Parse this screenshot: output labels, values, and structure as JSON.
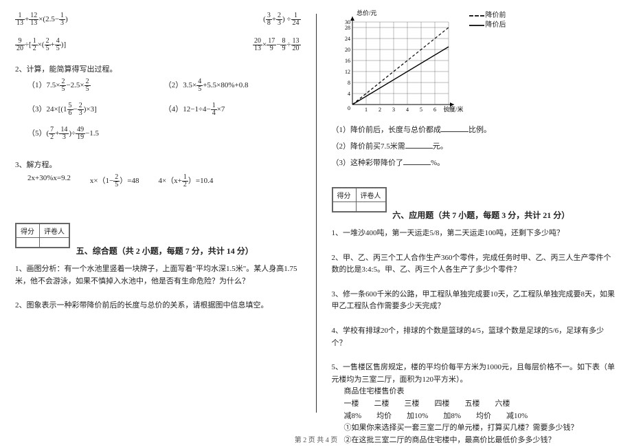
{
  "left": {
    "expr_row1a": {
      "f1n": "1",
      "f1d": "13",
      "f2n": "12",
      "f2d": "13",
      "tail": "×(2.5−",
      "f3n": "1",
      "f3d": "3",
      "close": ")"
    },
    "expr_row1b": {
      "open": "(",
      "f1n": "3",
      "f1d": "8",
      "op": "+",
      "f2n": "2",
      "f2d": "3",
      "close": ") ÷",
      "f3n": "1",
      "f3d": "24"
    },
    "expr_row2a": {
      "f1n": "9",
      "f1d": "20",
      "mid": "÷[",
      "f2n": "1",
      "f2d": "2",
      "op": "×(",
      "f3n": "2",
      "f3d": "5",
      "plus": "+",
      "f4n": "4",
      "f4d": "5",
      "close": ")]"
    },
    "expr_row2b": {
      "f1n": "20",
      "f1d": "13",
      "f2n": "17",
      "f2d": "9",
      "minus": "−",
      "f3n": "8",
      "f3d": "9",
      "div": "÷",
      "f4n": "13",
      "f4d": "20"
    },
    "q2": "2、计算，能简算得写出过程。",
    "q2_1": "（1）7.5×",
    "q2_1f": {
      "n": "2",
      "d": "5"
    },
    "q2_1mid": "−2.5×",
    "q2_2pre": "（2）",
    "q2_2a": "3.5×",
    "q2_2f": {
      "n": "4",
      "d": "5"
    },
    "q2_2b": "+5.5×80%+0.8",
    "q2_3pre": "（3）",
    "q2_3a": "24×[(1",
    "q2_3f1": {
      "n": "5",
      "d": "6"
    },
    "q2_3m": "−",
    "q2_3f2": {
      "n": "2",
      "d": "3"
    },
    "q2_3b": ")×3]",
    "q2_4": "（4）12−1÷4−",
    "q2_4f": {
      "n": "1",
      "d": "4"
    },
    "q2_4b": "×7",
    "q2_5pre": "（5）",
    "q2_5a": "(",
    "q2_5f1": {
      "n": "7",
      "d": "2"
    },
    "q2_5p": "+",
    "q2_5f2": {
      "n": "14",
      "d": "3"
    },
    "q2_5m": ")÷",
    "q2_5f3": {
      "n": "49",
      "d": "19"
    },
    "q2_5b": "−1.5",
    "q3": "3、解方程。",
    "q3a": "2x+30%x=9.2",
    "q3b_pre": "x×（1−",
    "q3b_f": {
      "n": "2",
      "d": "5"
    },
    "q3b_post": "）=48",
    "q3c_pre": "4×（x+",
    "q3c_f": {
      "n": "1",
      "d": "2"
    },
    "q3c_post": "）=10.4",
    "score_lbl_l": "得分",
    "score_lbl_r": "评卷人",
    "sec5": "五、综合题（共 2 小题，每题 7 分，共计 14 分）",
    "sec5_q1": "1、画图分析：有一个水池里竖着一块牌子，上面写着\"平均水深1.5米\"。某人身高1.75米，他不会游泳，如果不慎掉入水池中，他是否有生命危险？为什么？",
    "sec5_q2": "2、图象表示一种彩带降价前后的长度与总价的关系，请根据图中信息填空。"
  },
  "right": {
    "chart": {
      "y_label": "总价/元",
      "x_label": "长度/米",
      "y_ticks": [
        "0",
        "4",
        "8",
        "12",
        "16",
        "20",
        "24",
        "28",
        "30"
      ],
      "x_ticks": [
        "0",
        "1",
        "2",
        "3",
        "4",
        "5",
        "6",
        "7"
      ],
      "legend_a": "降价前",
      "legend_b": "降价后",
      "grid_color": "#555",
      "line_before": "dashed",
      "line_after": "solid",
      "width": 160,
      "height": 140
    },
    "blank_q1": "（1）降价前后，长度与总价都成",
    "blank_q1_tail": "比例。",
    "blank_q2": "（2）降价前买7.5米需",
    "blank_q2_tail": "元。",
    "blank_q3": "（3）这种彩带降价了",
    "blank_q3_tail": "%。",
    "score_lbl_l": "得分",
    "score_lbl_r": "评卷人",
    "sec6": "六、应用题（共 7 小题，每题 3 分，共计 21 分）",
    "app1": "1、一堆沙400吨，第一天运走5/8，第二天运走100吨，还剩下多少吨？",
    "app2": "2、甲、乙、丙三个工人合作生产360个零件，完成任务时甲、乙、丙三人生产零件个数的比是3:4:5。甲、乙、丙三个人各生产了多少个零件？",
    "app3": "3、修一条600千米的公路，甲工程队单独完成要10天，乙工程队单独完成要8天，如果甲乙工程队合作需要多少天完成？",
    "app4": "4、学校有排球20个，排球的个数是篮球的4/5，篮球个数是足球的5/6，足球有多少个？",
    "app5": "5、一售楼区售房规定，楼的平均价每平方米为1000元，且每层价格不一。如下表（单元楼均为三室二厅，面积为120平方米）。",
    "app5_title": "商品住宅楼售价表",
    "app5_row1": "一楼　　二楼　　三楼　　四楼　　五楼　　六楼",
    "app5_row2": "减8%　　均价　　加10%　　加8%　　均价　　减10%",
    "app5_sub1": "①如果你来选择买一套三室二厅的单元楼，打算买几楼？需要多少钱？",
    "app5_sub2": "②在这批三室二厅的商品住宅楼中，最高价比最低价多多少钱？"
  },
  "footer": "第 2 页  共 4 页"
}
